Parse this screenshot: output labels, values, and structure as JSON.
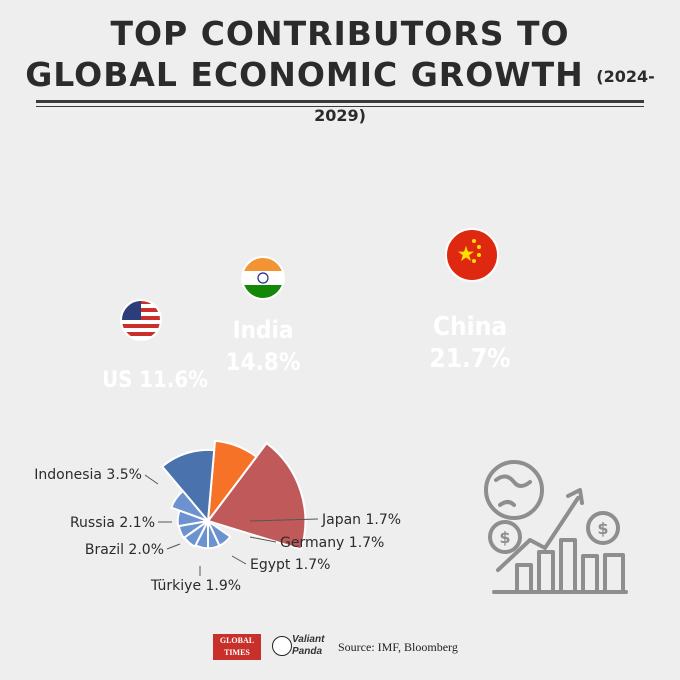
{
  "title": {
    "line1": "TOP CONTRIBUTORS TO",
    "line2": "GLOBAL ECONOMIC GROWTH",
    "years": "(2024-2029)"
  },
  "chart_data": {
    "type": "pie",
    "variant": "polar-area",
    "title": "TOP CONTRIBUTORS TO GLOBAL ECONOMIC GROWTH (2024-2029)",
    "unit": "%",
    "slices": [
      {
        "name": "China",
        "value": 21.7,
        "label": "21.7%",
        "color": "#c05a5a"
      },
      {
        "name": "India",
        "value": 14.8,
        "label": "14.8%",
        "color": "#f57226"
      },
      {
        "name": "US",
        "value": 11.6,
        "label": "US 11.6%",
        "color": "#4a72ad"
      },
      {
        "name": "Indonesia",
        "value": 3.5,
        "label": "Indonesia 3.5%",
        "color": "#6c93d0"
      },
      {
        "name": "Russia",
        "value": 2.1,
        "label": "Russia 2.1%",
        "color": "#6c93d0"
      },
      {
        "name": "Brazil",
        "value": 2.0,
        "label": "Brazil 2.0%",
        "color": "#6c93d0"
      },
      {
        "name": "Türkiye",
        "value": 1.9,
        "label": "Türkiye 1.9%",
        "color": "#6c93d0"
      },
      {
        "name": "Egypt",
        "value": 1.7,
        "label": "Egypt 1.7%",
        "color": "#6c93d0"
      },
      {
        "name": "Germany",
        "value": 1.7,
        "label": "Germany 1.7%",
        "color": "#6c93d0"
      },
      {
        "name": "Japan",
        "value": 1.7,
        "label": "Japan 1.7%",
        "color": "#6c93d0"
      }
    ]
  },
  "footer": {
    "logo1": "GLOBAL TIMES",
    "logo2_line1": "Valiant",
    "logo2_line2": "Panda",
    "source": "Source: IMF, Bloomberg"
  }
}
